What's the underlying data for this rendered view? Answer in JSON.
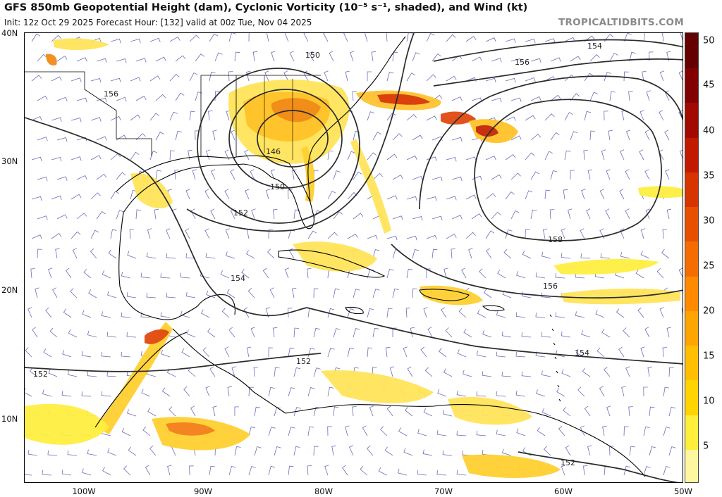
{
  "header": {
    "title": "GFS 850mb Geopotential Height (dam), Cyclonic Vorticity (10⁻⁵ s⁻¹, shaded), and Wind (kt)",
    "subtitle": "Init: 12z Oct 29 2025   Forecast Hour: [132]   valid at 00z Tue, Nov 04 2025",
    "brand": "TROPICALTIDBITS.COM"
  },
  "axes": {
    "lat_labels": [
      "40N",
      "30N",
      "20N",
      "10N"
    ],
    "lon_labels": [
      "100W",
      "90W",
      "80W",
      "70W",
      "60W",
      "50W"
    ]
  },
  "contour_labels": [
    "150",
    "154",
    "156",
    "156",
    "146",
    "150",
    "152",
    "158",
    "154",
    "156",
    "154",
    "152",
    "152",
    "152"
  ],
  "colorbar": {
    "labels": [
      "50",
      "45",
      "40",
      "35",
      "30",
      "25",
      "20",
      "15",
      "10",
      "5"
    ],
    "colors": [
      "#fff6a0",
      "#ffee3a",
      "#ffd400",
      "#ffbe00",
      "#ffa500",
      "#ff8a00",
      "#f56d00",
      "#e85000",
      "#d83400",
      "#c21a00",
      "#a20a00",
      "#820000",
      "#640000"
    ]
  },
  "colors": {
    "contour": "#2b2b2b",
    "wind_barb": "#6c6cb8",
    "coastline": "#000000",
    "vort_light": "#ffee3a",
    "vort_mid": "#ffb200",
    "vort_high": "#d83400"
  }
}
